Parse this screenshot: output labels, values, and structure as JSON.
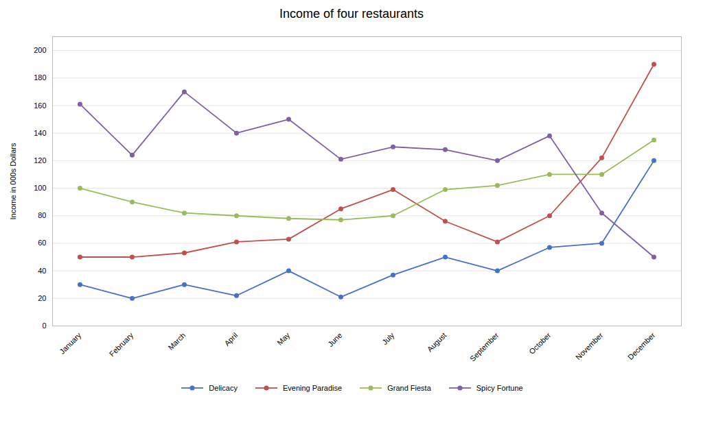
{
  "chart_data": {
    "type": "line",
    "title": "Income of four restaurants",
    "ylabel": "Income in 000s Dollars",
    "categories": [
      "January",
      "February",
      "March",
      "April",
      "May",
      "June",
      "July",
      "August",
      "September",
      "October",
      "November",
      "December"
    ],
    "series": [
      {
        "name": "Delicacy",
        "color": "#4472C4",
        "marker": "circle",
        "values": [
          30,
          20,
          30,
          22,
          40,
          21,
          37,
          50,
          40,
          57,
          60,
          120
        ]
      },
      {
        "name": "Evening Paradise",
        "color": "#C0504D",
        "marker": "circle",
        "values": [
          50,
          50,
          53,
          61,
          63,
          85,
          99,
          76,
          61,
          80,
          122,
          190
        ]
      },
      {
        "name": "Grand Fiesta",
        "color": "#9BBB59",
        "marker": "circle",
        "values": [
          100,
          90,
          82,
          80,
          78,
          77,
          80,
          99,
          102,
          110,
          110,
          135
        ]
      },
      {
        "name": "Spicy Fortune",
        "color": "#7F5FA6",
        "marker": "circle",
        "values": [
          161,
          124,
          170,
          140,
          150,
          121,
          130,
          128,
          120,
          138,
          82,
          50
        ]
      }
    ],
    "ylim": [
      0,
      210
    ],
    "yticks": [
      0,
      20,
      40,
      60,
      80,
      100,
      120,
      140,
      160,
      180,
      200
    ],
    "grid": true,
    "legend": "bottom"
  }
}
